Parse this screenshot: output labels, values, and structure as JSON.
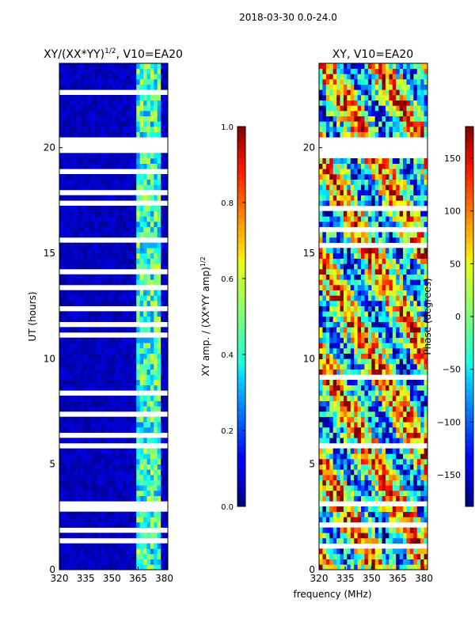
{
  "figure": {
    "suptitle": "2018-03-30 0.0-24.0",
    "shared_xlabel": "frequency (MHz)"
  },
  "chart_data": [
    {
      "type": "heatmap",
      "title_main": "XY/(XX*YY)",
      "title_exp": "1/2",
      "title_tail": ", V10=EA20",
      "ylabel": "UT (hours)",
      "xlim": [
        320,
        382
      ],
      "ylim": [
        0,
        24
      ],
      "xticks": [
        320,
        335,
        350,
        365,
        380
      ],
      "yticks": [
        0,
        5,
        10,
        15,
        20
      ],
      "colormap": "jet",
      "colorbar": {
        "label_main": "XY amp. / (XX*YY amp)",
        "label_exp": "1/2",
        "range": [
          0.0,
          1.0
        ],
        "ticks": [
          0.0,
          0.2,
          0.4,
          0.6,
          0.8,
          1.0
        ],
        "tick_labels": [
          "0.0",
          "0.2",
          "0.4",
          "0.6",
          "0.8",
          "1.0"
        ]
      },
      "blank_bands_ut": [
        [
          19.8,
          20.4
        ],
        [
          5.7,
          5.9
        ],
        [
          3.0,
          3.15
        ],
        [
          1.4,
          1.55
        ],
        [
          22.4,
          22.55
        ],
        [
          15.0,
          15.1
        ],
        [
          10.9,
          11.0
        ]
      ]
    },
    {
      "type": "heatmap",
      "title": "XY, V10=EA20",
      "ylabel": "",
      "xlim": [
        320,
        382
      ],
      "ylim": [
        0,
        24
      ],
      "xticks": [
        320,
        335,
        350,
        365,
        380
      ],
      "yticks": [
        0,
        5,
        10,
        15,
        20
      ],
      "colormap": "jet",
      "colorbar": {
        "label": "Phase (degrees)",
        "range": [
          -180,
          180
        ],
        "ticks": [
          -150,
          -100,
          -50,
          0,
          50,
          100,
          150
        ],
        "tick_labels": [
          "−150",
          "−100",
          "−50",
          "0",
          "50",
          "100",
          "150"
        ]
      },
      "blank_bands_ut": [
        [
          19.8,
          20.4
        ],
        [
          5.7,
          5.9
        ],
        [
          3.0,
          3.15
        ],
        [
          1.4,
          1.55
        ],
        [
          22.4,
          22.55
        ],
        [
          15.0,
          15.1
        ],
        [
          10.9,
          11.0
        ]
      ]
    }
  ]
}
